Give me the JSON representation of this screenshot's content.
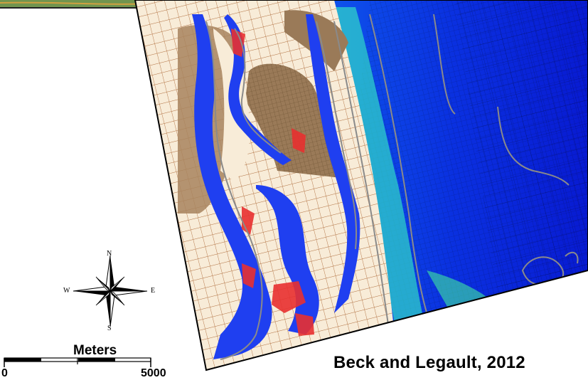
{
  "citation": "Beck and Legault, 2012",
  "scale_bar": {
    "unit_label": "Meters",
    "min_label": "0",
    "max_label": "5000"
  },
  "compass": {
    "north": "N",
    "south": "S",
    "east": "E",
    "west": "W"
  },
  "colors": {
    "land": "#f8ecd8",
    "mesh_land": "#c08050",
    "marsh": "#9a7a58",
    "channel": "#1f3ff0",
    "shoal": "#e83030",
    "ocean_deep": "#0a1ad8",
    "ocean_mid": "#1858f0",
    "ocean_light": "#2aa0f0",
    "surf": "#30e0c0",
    "contour": "#8a8a8a"
  }
}
